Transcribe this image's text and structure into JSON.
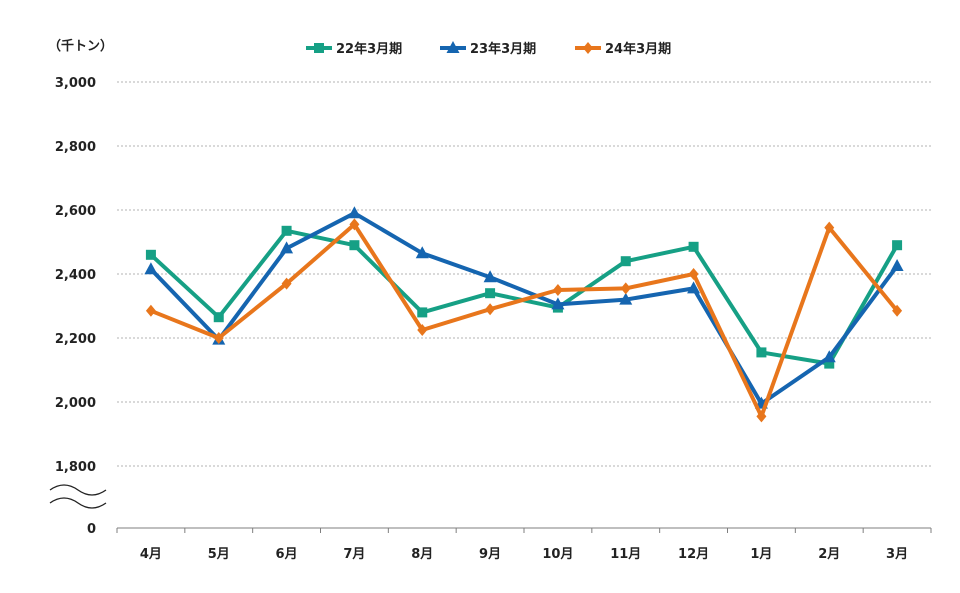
{
  "chart_data": {
    "type": "line",
    "unit_label": "（千トン）",
    "categories": [
      "4月",
      "5月",
      "6月",
      "7月",
      "8月",
      "9月",
      "10月",
      "11月",
      "12月",
      "1月",
      "2月",
      "3月"
    ],
    "y_ticks": [
      {
        "value": 0,
        "label": "0"
      },
      {
        "value": 1800,
        "label": "1,800"
      },
      {
        "value": 2000,
        "label": "2,000"
      },
      {
        "value": 2200,
        "label": "2,200"
      },
      {
        "value": 2400,
        "label": "2,400"
      },
      {
        "value": 2600,
        "label": "2,600"
      },
      {
        "value": 2800,
        "label": "2,800"
      },
      {
        "value": 3000,
        "label": "3,000"
      }
    ],
    "axis_break": true,
    "break_range": [
      0,
      1800
    ],
    "ylim": [
      1800,
      3000
    ],
    "grid": true,
    "legend_position": "top-center",
    "series": [
      {
        "name": "22年3月期",
        "color": "#16a085",
        "marker": "square",
        "values": [
          2460,
          2265,
          2535,
          2490,
          2280,
          2340,
          2295,
          2440,
          2485,
          2155,
          2120,
          2490
        ]
      },
      {
        "name": "23年3月期",
        "color": "#1565b0",
        "marker": "triangle",
        "values": [
          2415,
          2195,
          2480,
          2590,
          2465,
          2390,
          2305,
          2320,
          2355,
          1995,
          2140,
          2425
        ]
      },
      {
        "name": "24年3月期",
        "color": "#e8761c",
        "marker": "diamond",
        "values": [
          2285,
          2200,
          2370,
          2555,
          2225,
          2290,
          2350,
          2355,
          2400,
          1955,
          2545,
          2285
        ]
      }
    ]
  }
}
